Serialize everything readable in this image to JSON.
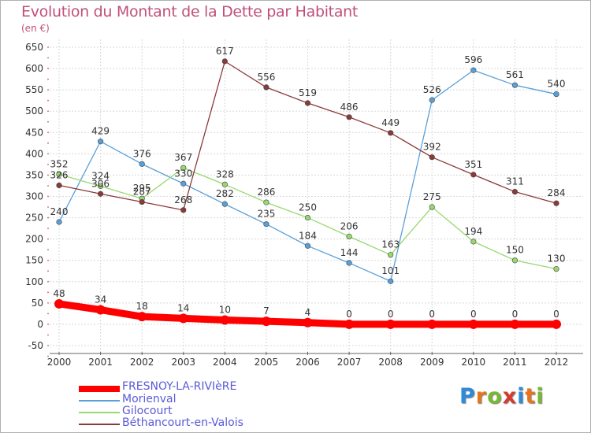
{
  "header": {
    "title": "Evolution du Montant de la Dette par Habitant",
    "subtitle": "(en €)"
  },
  "logo": {
    "letters": [
      "P",
      "r",
      "o",
      "x",
      "i",
      "t",
      "i"
    ],
    "colors": [
      "#2e8bd8",
      "#e8741c",
      "#78b832",
      "#d83a2e",
      "#2e8bd8",
      "#e8741c",
      "#78b832"
    ]
  },
  "chart_data": {
    "type": "line",
    "title": "Evolution du Montant de la Dette par Habitant",
    "ylabel": "(en €)",
    "xlabel": "",
    "x": [
      "2000",
      "2001",
      "2002",
      "2003",
      "2004",
      "2005",
      "2006",
      "2007",
      "2008",
      "2009",
      "2010",
      "2011",
      "2012"
    ],
    "ylim": [
      -50,
      650
    ],
    "yticks": [
      "-50",
      "0",
      "50",
      "100",
      "150",
      "200",
      "250",
      "300",
      "350",
      "400",
      "450",
      "500",
      "550",
      "600",
      "650"
    ],
    "grid": true,
    "legend_position": "bottom-left",
    "series": [
      {
        "name": "FRESNOY-LA-RIVIèRE",
        "color": "#ff0000",
        "values": [
          48,
          34,
          18,
          14,
          10,
          7,
          4,
          0,
          0,
          0,
          0,
          0,
          0
        ],
        "labels": [
          "48",
          "34",
          "18",
          "14",
          "10",
          "7",
          "4",
          "0",
          "0",
          "0",
          "0",
          "0",
          "0"
        ]
      },
      {
        "name": "Morienval",
        "color": "#5aa0d8",
        "values": [
          240,
          429,
          376,
          330,
          282,
          235,
          184,
          144,
          101,
          526,
          596,
          561,
          540
        ],
        "labels": [
          "240",
          "429",
          "376",
          "330",
          "282",
          "235",
          "184",
          "144",
          "101",
          "526",
          "596",
          "561",
          "540"
        ]
      },
      {
        "name": "Gilocourt",
        "color": "#98d870",
        "values": [
          352,
          324,
          295,
          367,
          328,
          286,
          250,
          206,
          163,
          275,
          194,
          150,
          130
        ],
        "labels": [
          "352",
          "324",
          "295",
          "367",
          "328",
          "286",
          "250",
          "206",
          "163",
          "275",
          "194",
          "150",
          "130"
        ]
      },
      {
        "name": "Béthancourt-en-Valois",
        "color": "#8b3a3a",
        "values": [
          326,
          306,
          287,
          268,
          617,
          556,
          519,
          486,
          449,
          392,
          351,
          311,
          284
        ],
        "labels": [
          "326",
          "306",
          "287",
          "268",
          "617",
          "556",
          "519",
          "486",
          "449",
          "392",
          "351",
          "311",
          "284"
        ]
      }
    ]
  }
}
